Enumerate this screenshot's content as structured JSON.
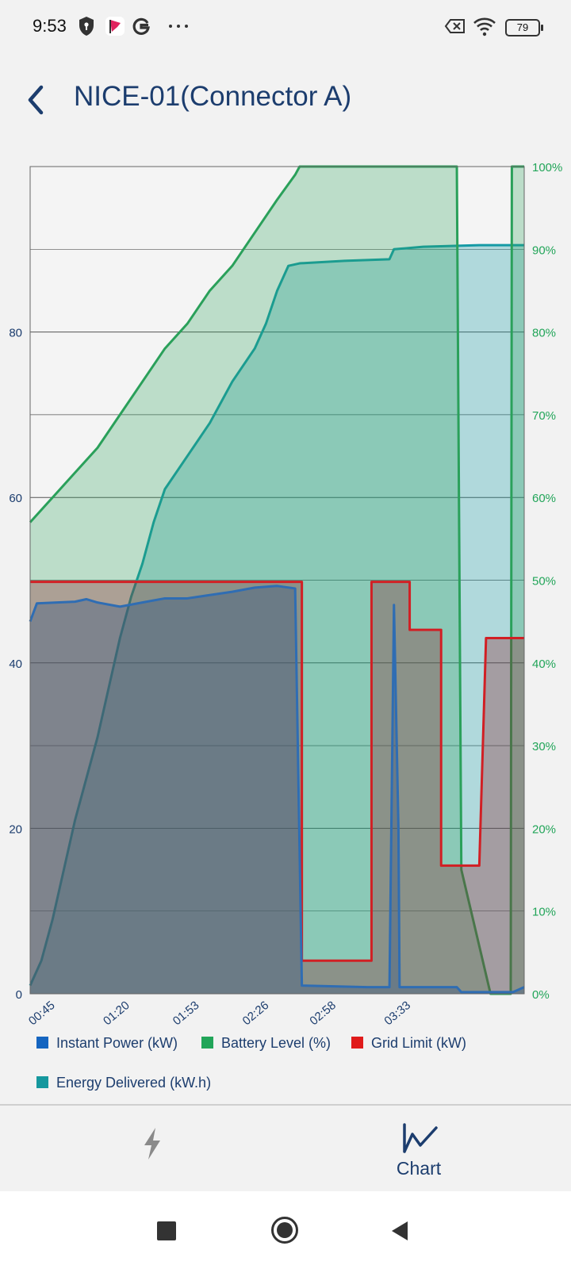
{
  "status_bar": {
    "time": "9:53",
    "battery": "79",
    "left_icons": [
      "shield-icon",
      "flag-app-icon",
      "google-icon",
      "more-dots-icon"
    ],
    "right_icons": [
      "no-sim-icon",
      "wifi-icon",
      "battery-icon"
    ]
  },
  "header": {
    "title": "NICE-01(Connector A)",
    "back_icon": "chevron-left-icon"
  },
  "chart_data": {
    "type": "area",
    "x_ticks": [
      "00:45",
      "01:20",
      "01:53",
      "02:26",
      "02:58",
      "03:33"
    ],
    "y_left": {
      "ticks": [
        "0",
        "20",
        "40",
        "60",
        "80"
      ],
      "range": [
        0,
        100
      ]
    },
    "y_right": {
      "ticks": [
        "0%",
        "10%",
        "20%",
        "30%",
        "40%",
        "50%",
        "60%",
        "70%",
        "80%",
        "90%",
        "100%"
      ],
      "range": [
        0,
        100
      ]
    },
    "grid": true,
    "legend_position": "bottom",
    "x_domain_minutes": [
      0,
      220
    ],
    "series": [
      {
        "name": "Energy Delivered (kW.h)",
        "axis": "left",
        "color": "#159aa5",
        "points": [
          [
            0,
            1
          ],
          [
            5,
            4
          ],
          [
            10,
            9
          ],
          [
            15,
            15
          ],
          [
            20,
            21
          ],
          [
            25,
            26
          ],
          [
            30,
            31
          ],
          [
            35,
            37
          ],
          [
            40,
            43
          ],
          [
            45,
            48
          ],
          [
            50,
            52
          ],
          [
            55,
            57
          ],
          [
            60,
            61
          ],
          [
            70,
            65
          ],
          [
            80,
            69
          ],
          [
            90,
            74
          ],
          [
            100,
            78
          ],
          [
            105,
            81
          ],
          [
            110,
            85
          ],
          [
            115,
            88
          ],
          [
            120,
            88.3
          ],
          [
            140,
            88.6
          ],
          [
            160,
            88.8
          ],
          [
            162,
            90
          ],
          [
            175,
            90.3
          ],
          [
            200,
            90.5
          ],
          [
            220,
            90.5
          ]
        ]
      },
      {
        "name": "Battery Level (%)",
        "axis": "right",
        "color": "#2aa05a",
        "points": [
          [
            0,
            57
          ],
          [
            10,
            60
          ],
          [
            20,
            63
          ],
          [
            30,
            66
          ],
          [
            40,
            70
          ],
          [
            50,
            74
          ],
          [
            60,
            78
          ],
          [
            70,
            81
          ],
          [
            80,
            85
          ],
          [
            90,
            88
          ],
          [
            100,
            92
          ],
          [
            110,
            96
          ],
          [
            118,
            99
          ],
          [
            120,
            100
          ],
          [
            190,
            100
          ],
          [
            192,
            15
          ],
          [
            205,
            0
          ],
          [
            214,
            0
          ],
          [
            214.5,
            100
          ],
          [
            220,
            100
          ]
        ]
      },
      {
        "name": "Grid Limit (kW)",
        "axis": "left",
        "color": "#d11f24",
        "points": [
          [
            0,
            49.8
          ],
          [
            121,
            49.8
          ],
          [
            121,
            4
          ],
          [
            152,
            4
          ],
          [
            152,
            49.8
          ],
          [
            169,
            49.8
          ],
          [
            169,
            44
          ],
          [
            183,
            44
          ],
          [
            183,
            15.5
          ],
          [
            200,
            15.5
          ],
          [
            203,
            43
          ],
          [
            220,
            43
          ]
        ]
      },
      {
        "name": "Instant Power (kW)",
        "axis": "left",
        "color": "#2f6db3",
        "points": [
          [
            0,
            45
          ],
          [
            3,
            47.2
          ],
          [
            20,
            47.4
          ],
          [
            25,
            47.7
          ],
          [
            30,
            47.3
          ],
          [
            40,
            46.8
          ],
          [
            50,
            47.3
          ],
          [
            60,
            47.8
          ],
          [
            70,
            47.8
          ],
          [
            80,
            48.2
          ],
          [
            90,
            48.6
          ],
          [
            100,
            49.1
          ],
          [
            110,
            49.3
          ],
          [
            118,
            49
          ],
          [
            121,
            1
          ],
          [
            150,
            0.8
          ],
          [
            160,
            0.8
          ],
          [
            162,
            47
          ],
          [
            164,
            20
          ],
          [
            164.5,
            0.8
          ],
          [
            190,
            0.8
          ],
          [
            192,
            0.2
          ],
          [
            215,
            0.2
          ],
          [
            220,
            0.8
          ]
        ]
      }
    ]
  },
  "legend": {
    "items": [
      {
        "label": "Instant Power (kW)",
        "color": "#1565c0"
      },
      {
        "label": "Battery Level (%)",
        "color": "#22a559"
      },
      {
        "label": "Grid Limit (kW)",
        "color": "#e01b1b"
      },
      {
        "label": "Energy Delivered (kW.h)",
        "color": "#16989e"
      }
    ]
  },
  "bottom_nav": {
    "items": [
      {
        "icon": "lightning-icon",
        "label": ""
      },
      {
        "icon": "chart-line-icon",
        "label": "Chart"
      }
    ]
  },
  "system_nav": {
    "icons": [
      "recents-square-icon",
      "home-circle-icon",
      "back-triangle-icon"
    ]
  }
}
